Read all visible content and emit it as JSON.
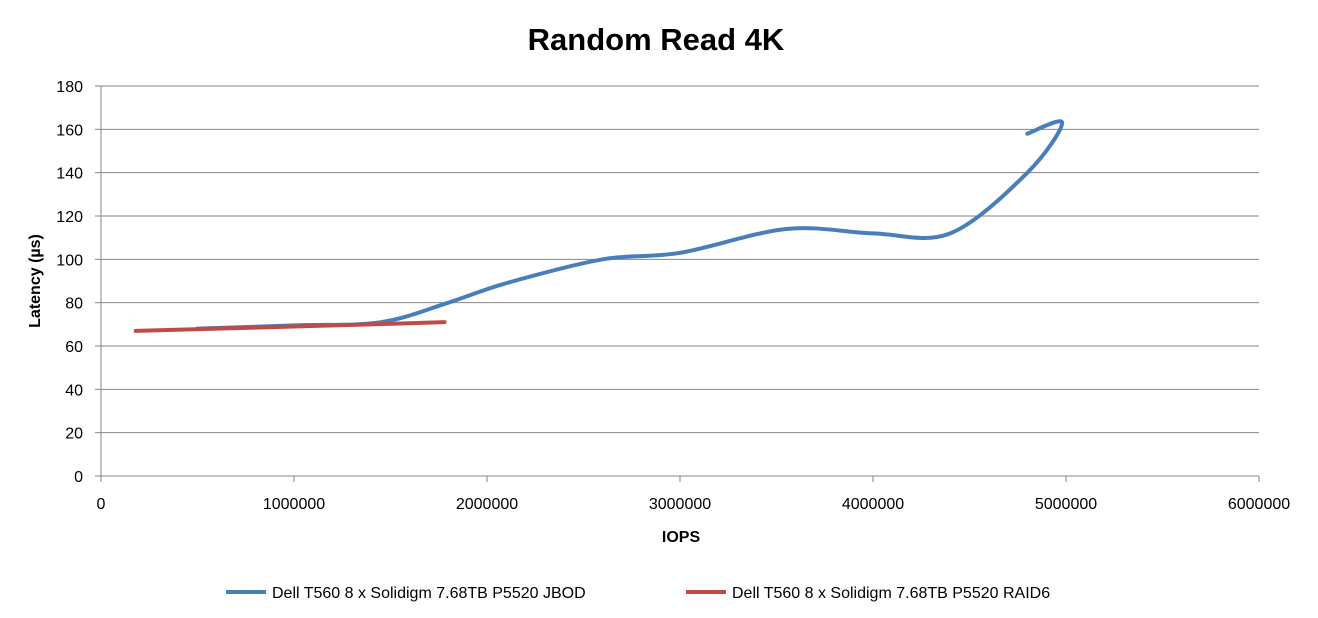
{
  "chart_data": {
    "type": "line",
    "title": "Random Read 4K",
    "xlabel": "IOPS",
    "ylabel": "Latency (µs)",
    "xlim": [
      0,
      6000000
    ],
    "ylim": [
      0,
      180
    ],
    "x_ticks": [
      0,
      1000000,
      2000000,
      3000000,
      4000000,
      5000000,
      6000000
    ],
    "x_tick_labels": [
      "0",
      "1000000",
      "2000000",
      "3000000",
      "4000000",
      "5000000",
      "6000000"
    ],
    "y_ticks": [
      0,
      20,
      40,
      60,
      80,
      100,
      120,
      140,
      160,
      180
    ],
    "y_tick_labels": [
      "0",
      "20",
      "40",
      "60",
      "80",
      "100",
      "120",
      "140",
      "160",
      "180"
    ],
    "grid": "horizontal",
    "legend_position": "bottom",
    "series": [
      {
        "name": "Dell T560 8 x Solidigm 7.68TB P5520 JBOD",
        "color": "#4a7ebb",
        "x": [
          500000,
          1000000,
          1450000,
          1800000,
          2100000,
          2600000,
          3000000,
          3550000,
          4000000,
          4400000,
          4800000,
          4980000,
          4800000
        ],
        "y": [
          68,
          69.5,
          71,
          80,
          89,
          100,
          103,
          114,
          112,
          112,
          140,
          163,
          158
        ]
      },
      {
        "name": "Dell T560 8 x Solidigm 7.68TB P5520 RAID6",
        "color": "#be4b48",
        "x": [
          180000,
          600000,
          1000000,
          1400000,
          1780000
        ],
        "y": [
          67,
          68,
          69,
          70,
          71
        ]
      }
    ]
  }
}
